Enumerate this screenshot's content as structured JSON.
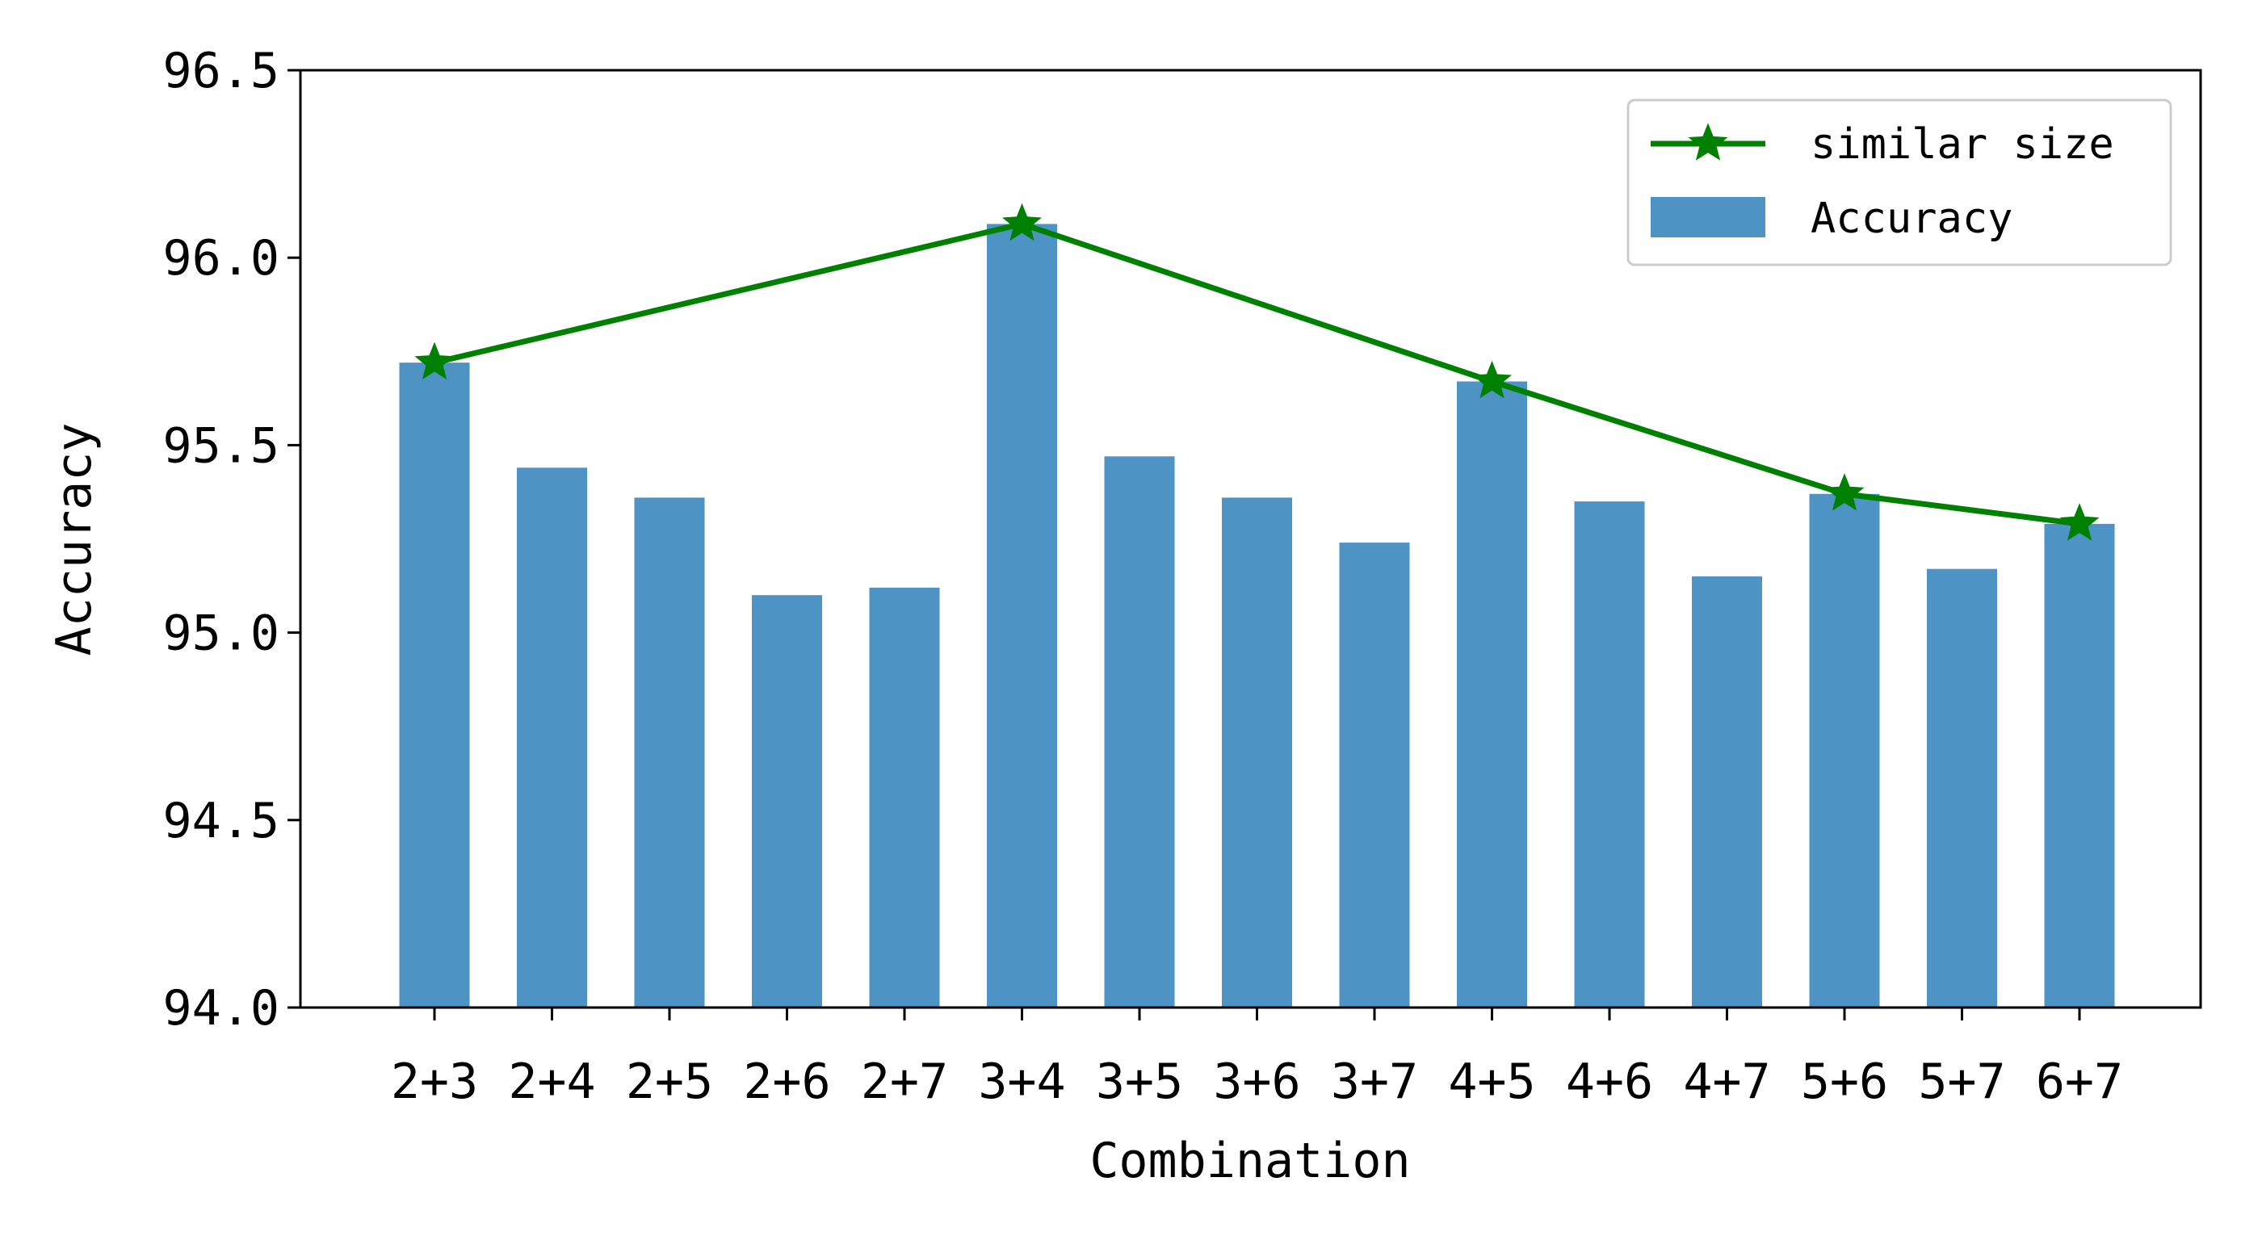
{
  "chart_data": {
    "type": "bar",
    "title": "",
    "xlabel": "Combination",
    "ylabel": "Accuracy",
    "ylim": [
      94.0,
      96.5
    ],
    "yticks": [
      "94.0",
      "94.5",
      "95.0",
      "95.5",
      "96.0",
      "96.5"
    ],
    "categories": [
      "2+3",
      "2+4",
      "2+5",
      "2+6",
      "2+7",
      "3+4",
      "3+5",
      "3+6",
      "3+7",
      "4+5",
      "4+6",
      "4+7",
      "5+6",
      "5+7",
      "6+7"
    ],
    "series": [
      {
        "name": "Accuracy",
        "type": "bar",
        "color": "#4d93c3",
        "values": [
          95.72,
          95.44,
          95.36,
          95.1,
          95.12,
          96.09,
          95.47,
          95.36,
          95.24,
          95.67,
          95.35,
          95.15,
          95.37,
          95.17,
          95.29
        ]
      },
      {
        "name": "similar size",
        "type": "line",
        "marker": "star",
        "color": "#008000",
        "x": [
          "2+3",
          "3+4",
          "4+5",
          "5+6",
          "6+7"
        ],
        "values": [
          95.72,
          96.09,
          95.67,
          95.37,
          95.29
        ]
      }
    ],
    "legend_position": "top-right",
    "grid": false
  }
}
